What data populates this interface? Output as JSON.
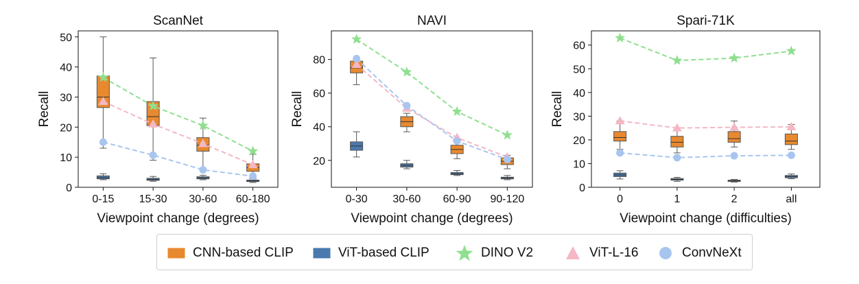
{
  "chart_data": [
    {
      "type": "box+line",
      "title": "ScanNet",
      "xlabel": "Viewpoint change (degrees)",
      "ylabel": "Recall",
      "categories": [
        "0-15",
        "15-30",
        "30-60",
        "60-180"
      ],
      "ylim": [
        0,
        52
      ],
      "yticks": [
        0,
        10,
        20,
        30,
        40,
        50
      ],
      "boxes": [
        {
          "name": "CNN-based CLIP",
          "color": "#e8892f",
          "stats": [
            {
              "whislo": 13,
              "q1": 26.5,
              "med": 30,
              "q3": 37,
              "whishi": 50
            },
            {
              "whislo": 9,
              "q1": 20.5,
              "med": 23.5,
              "q3": 28.5,
              "whishi": 43
            },
            {
              "whislo": 6,
              "q1": 12,
              "med": 14,
              "q3": 16.5,
              "whishi": 23
            },
            {
              "whislo": 3,
              "q1": 5.3,
              "med": 6.5,
              "q3": 7.8,
              "whishi": 11
            }
          ]
        },
        {
          "name": "ViT-based CLIP",
          "color": "#4a79ad",
          "stats": [
            {
              "whislo": 2.5,
              "q1": 2.8,
              "med": 3.2,
              "q3": 3.8,
              "whishi": 4.5
            },
            {
              "whislo": 2.0,
              "q1": 2.3,
              "med": 2.6,
              "q3": 3.0,
              "whishi": 3.6
            },
            {
              "whislo": 2.5,
              "q1": 2.8,
              "med": 3.1,
              "q3": 3.5,
              "whishi": 4.0
            },
            {
              "whislo": 1.6,
              "q1": 1.9,
              "med": 2.1,
              "q3": 2.4,
              "whishi": 2.8
            }
          ]
        }
      ],
      "series": [
        {
          "name": "DINO V2",
          "values": [
            36.5,
            27,
            20.5,
            12
          ]
        },
        {
          "name": "ViT-L-16",
          "values": [
            28.5,
            21,
            14.5,
            7.5
          ]
        },
        {
          "name": "ConvNeXt",
          "values": [
            15,
            10.7,
            5.8,
            3.7
          ]
        }
      ]
    },
    {
      "type": "box+line",
      "title": "NAVI",
      "xlabel": "Viewpoint change (degrees)",
      "ylabel": "Recall",
      "categories": [
        "0-30",
        "30-60",
        "60-90",
        "90-120"
      ],
      "ylim": [
        4,
        97
      ],
      "yticks": [
        20,
        40,
        60,
        80
      ],
      "boxes": [
        {
          "name": "CNN-based CLIP",
          "color": "#e8892f",
          "stats": [
            {
              "whislo": 65,
              "q1": 72,
              "med": 75,
              "q3": 79,
              "whishi": 80
            },
            {
              "whislo": 37,
              "q1": 40,
              "med": 43,
              "q3": 46,
              "whishi": 48
            },
            {
              "whislo": 21,
              "q1": 24,
              "med": 26.5,
              "q3": 29,
              "whishi": 31
            },
            {
              "whislo": 15,
              "q1": 17.5,
              "med": 19.5,
              "q3": 21.5,
              "whishi": 23
            }
          ]
        },
        {
          "name": "ViT-based CLIP",
          "color": "#4a79ad",
          "stats": [
            {
              "whislo": 22,
              "q1": 26,
              "med": 28.5,
              "q3": 31,
              "whishi": 37
            },
            {
              "whislo": 15,
              "q1": 16,
              "med": 17,
              "q3": 18,
              "whishi": 20
            },
            {
              "whislo": 11,
              "q1": 11.5,
              "med": 12,
              "q3": 12.8,
              "whishi": 14
            },
            {
              "whislo": 8.5,
              "q1": 9,
              "med": 9.5,
              "q3": 10,
              "whishi": 11
            }
          ]
        }
      ],
      "series": [
        {
          "name": "DINO V2",
          "values": [
            92,
            72.5,
            49,
            35
          ]
        },
        {
          "name": "ViT-L-16",
          "values": [
            77,
            51,
            33.5,
            22
          ]
        },
        {
          "name": "ConvNeXt",
          "values": [
            80.5,
            52.5,
            31.5,
            20.5
          ]
        }
      ]
    },
    {
      "type": "box+line",
      "title": "Spari-71K",
      "xlabel": "Viewpoint change (difficulties)",
      "ylabel": "Recall",
      "categories": [
        "0",
        "1",
        "2",
        "all"
      ],
      "ylim": [
        0,
        66
      ],
      "yticks": [
        0,
        10,
        20,
        30,
        40,
        50,
        60
      ],
      "boxes": [
        {
          "name": "CNN-based CLIP",
          "color": "#e8892f",
          "stats": [
            {
              "whislo": 16,
              "q1": 19.5,
              "med": 21,
              "q3": 23.5,
              "whishi": 28
            },
            {
              "whislo": 14.5,
              "q1": 17,
              "med": 19,
              "q3": 21.5,
              "whishi": 25
            },
            {
              "whislo": 17,
              "q1": 19,
              "med": 20.5,
              "q3": 23.5,
              "whishi": 28
            },
            {
              "whislo": 16,
              "q1": 18,
              "med": 19.5,
              "q3": 22.5,
              "whishi": 26.5
            }
          ]
        },
        {
          "name": "ViT-based CLIP",
          "color": "#4a79ad",
          "stats": [
            {
              "whislo": 3.5,
              "q1": 4.5,
              "med": 5.2,
              "q3": 6,
              "whishi": 7
            },
            {
              "whislo": 2.5,
              "q1": 3.0,
              "med": 3.3,
              "q3": 3.7,
              "whishi": 4.2
            },
            {
              "whislo": 2.2,
              "q1": 2.5,
              "med": 2.8,
              "q3": 3.0,
              "whishi": 3.3
            },
            {
              "whislo": 3.6,
              "q1": 4.0,
              "med": 4.5,
              "q3": 5.0,
              "whishi": 5.6
            }
          ]
        }
      ],
      "series": [
        {
          "name": "DINO V2",
          "values": [
            63,
            53.5,
            54.5,
            57.5
          ]
        },
        {
          "name": "ViT-L-16",
          "values": [
            28,
            25,
            25.3,
            25.5
          ]
        },
        {
          "name": "ConvNeXt",
          "values": [
            14.5,
            12.5,
            13.3,
            13.5
          ]
        }
      ]
    }
  ],
  "legend": [
    {
      "label": "CNN-based CLIP",
      "marker": "box",
      "color": "#e8892f"
    },
    {
      "label": "ViT-based CLIP",
      "marker": "box",
      "color": "#4a79ad"
    },
    {
      "label": "DINO V2",
      "marker": "star",
      "color": "#8fdf8f"
    },
    {
      "label": "ViT-L-16",
      "marker": "triangle",
      "color": "#f4b7c4"
    },
    {
      "label": "ConvNeXt",
      "marker": "circle",
      "color": "#a8c5ef"
    }
  ],
  "colors": {
    "DINO V2": "#8fdf8f",
    "ViT-L-16": "#f4b7c4",
    "ConvNeXt": "#a8c5ef"
  }
}
